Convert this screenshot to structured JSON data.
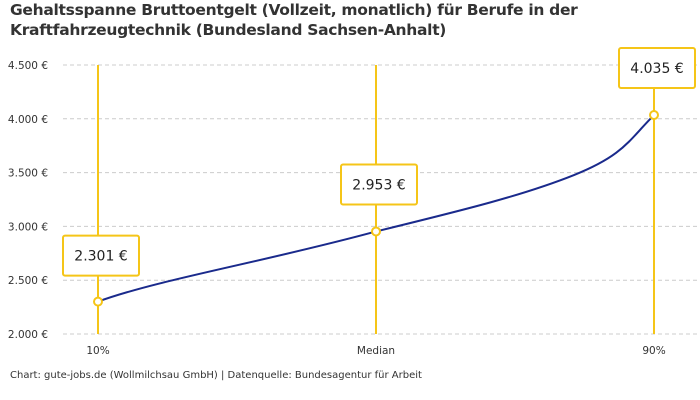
{
  "chart_data": {
    "type": "line",
    "title": "Gehaltsspanne Bruttoentgelt (Vollzeit, monatlich) für Berufe in der Kraftfahrzeugtechnik (Bundesland Sachsen-Anhalt)",
    "categories": [
      "10%",
      "Median",
      "90%"
    ],
    "values": [
      2301,
      2953,
      4035
    ],
    "data_labels": [
      "2.301 €",
      "2.953 €",
      "4.035 €"
    ],
    "ylim": [
      2000,
      4500
    ],
    "yticks": [
      2000,
      2500,
      3000,
      3500,
      4000,
      4500
    ],
    "ytick_labels": [
      "2.000 €",
      "2.500 €",
      "3.000 €",
      "3.500 €",
      "4.000 €",
      "4.500 €"
    ],
    "grid": true,
    "colors": {
      "line": "#1a2a8c",
      "marker": "#f5c518",
      "grid": "#cccccc"
    }
  },
  "footer": "Chart: gute-jobs.de (Wollmilchsau GmbH) | Datenquelle: Bundesagentur für Arbeit"
}
